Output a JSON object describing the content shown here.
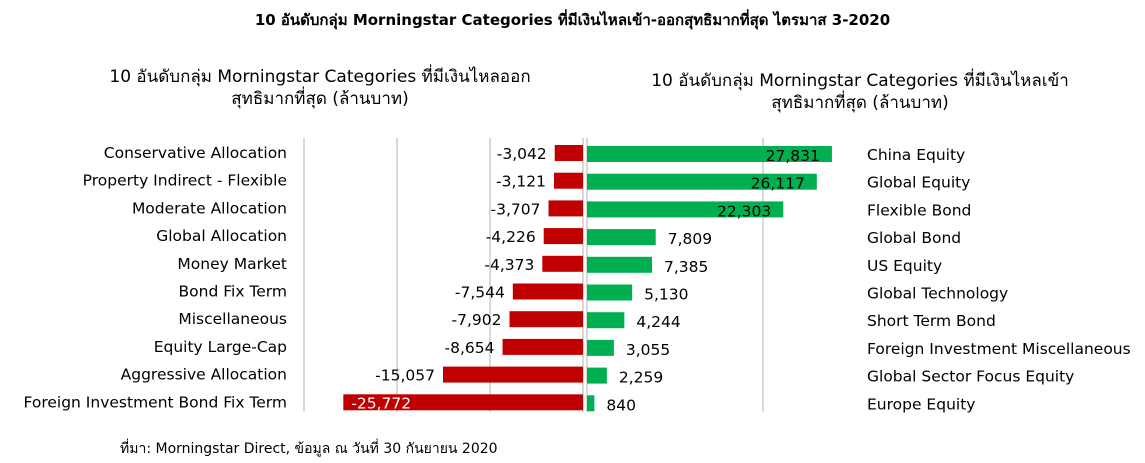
{
  "title": "10 อันดับกลุ่ม Morningstar Categories ที่มีเงินไหลเข้า-ออกสุทธิมากที่สุด ไตรมาส 3-2020",
  "source": "ที่มา: Morningstar Direct, ข้อมูล ณ วันที่ 30 กันยายน 2020",
  "chart_data": [
    {
      "type": "bar",
      "orientation": "horizontal",
      "title": "10 อันดับกลุ่ม Morningstar Categories ที่มีเงินไหลออก",
      "title_line2": "สุทธิมากที่สุด (ล้านบาท)",
      "categories": [
        "Conservative Allocation",
        "Property Indirect - Flexible",
        "Moderate Allocation",
        "Global Allocation",
        "Money Market",
        "Bond Fix Term",
        "Miscellaneous",
        "Equity Large-Cap",
        "Aggressive Allocation",
        "Foreign Investment Bond Fix Term"
      ],
      "values": [
        -3042,
        -3121,
        -3707,
        -4226,
        -4373,
        -7544,
        -7902,
        -8654,
        -15057,
        -25772
      ],
      "labels": [
        "-3,042",
        "-3,121",
        "-3,707",
        "-4,226",
        "-4,373",
        "-7,544",
        "-7,902",
        "-8,654",
        "-15,057",
        "-25,772"
      ],
      "xlim": [
        -30000,
        0
      ],
      "grid": true,
      "color": "#C00000"
    },
    {
      "type": "bar",
      "orientation": "horizontal",
      "title": "10 อันดับกลุ่ม Morningstar Categories ที่มีเงินไหลเข้า",
      "title_line2": "สุทธิมากที่สุด (ล้านบาท)",
      "categories": [
        "China Equity",
        "Global Equity",
        "Flexible Bond",
        "Global Bond",
        "US Equity",
        "Global Technology",
        "Short Term Bond",
        "Foreign Investment Miscellaneous",
        "Global Sector Focus Equity",
        "Europe Equity"
      ],
      "values": [
        27831,
        26117,
        22303,
        7809,
        7385,
        5130,
        4244,
        3055,
        2259,
        840
      ],
      "labels": [
        "27,831",
        "26,117",
        "22,303",
        "7,809",
        "7,385",
        "5,130",
        "4,244",
        "3,055",
        "2,259",
        "840"
      ],
      "xlim": [
        0,
        40000
      ],
      "grid": true,
      "color": "#00B050"
    }
  ]
}
